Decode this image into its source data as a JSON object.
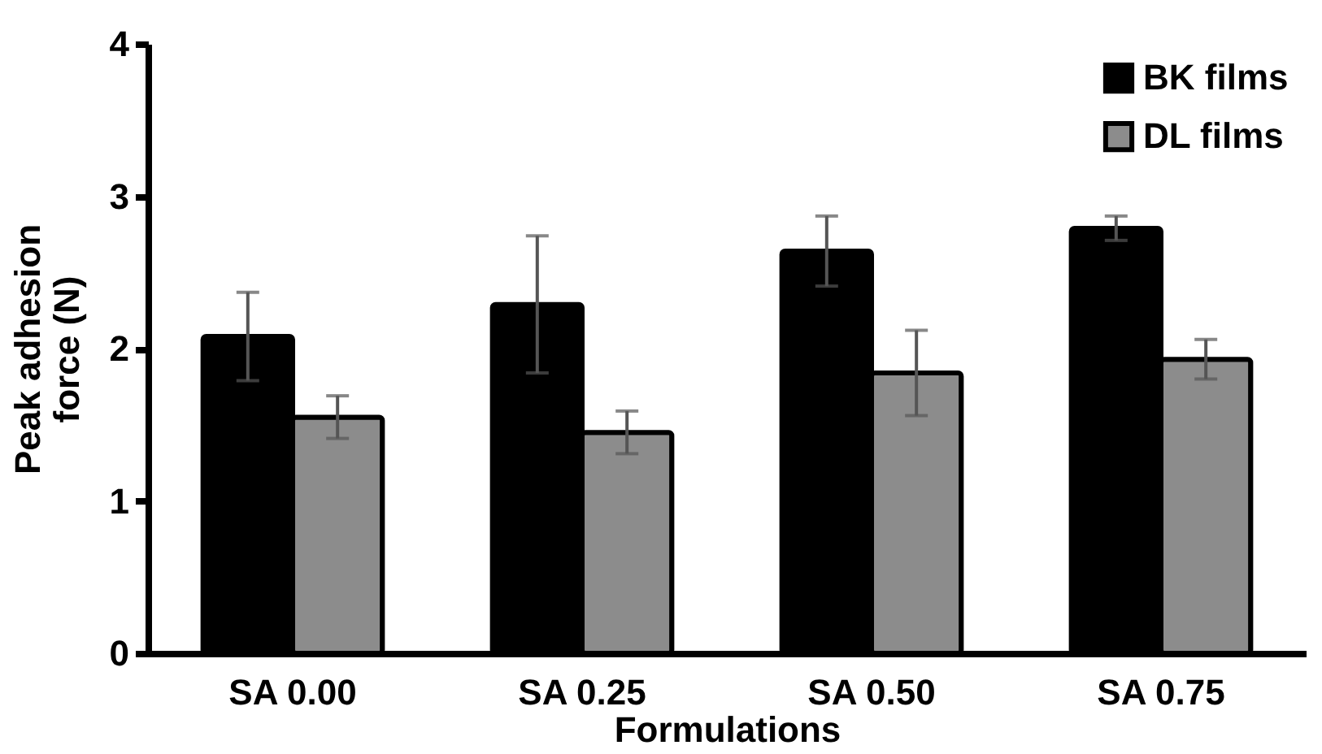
{
  "chart_data": {
    "type": "bar",
    "xlabel": "Formulations",
    "ylabel": "Peak adhesion force (N)",
    "categories": [
      "SA 0.00",
      "SA 0.25",
      "SA 0.50",
      "SA 0.75"
    ],
    "series": [
      {
        "name": "BK films",
        "color": "#000000",
        "values": [
          2.08,
          2.29,
          2.64,
          2.79
        ],
        "errors": [
          0.29,
          0.45,
          0.23,
          0.08
        ]
      },
      {
        "name": "DL films",
        "color": "#8c8c8c",
        "values": [
          1.55,
          1.45,
          1.84,
          1.93
        ],
        "errors": [
          0.14,
          0.14,
          0.28,
          0.13
        ]
      }
    ],
    "ylim": [
      0,
      4
    ],
    "yticks": [
      0,
      1,
      2,
      3,
      4
    ],
    "grid": false,
    "legend": "top right"
  }
}
